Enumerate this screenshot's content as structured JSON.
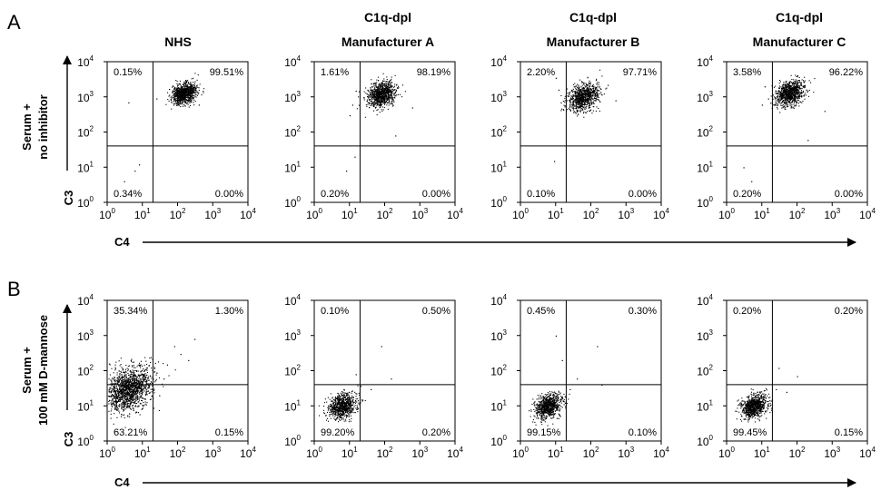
{
  "figure": {
    "panel_letters": [
      "A",
      "B"
    ],
    "column_headers": [
      {
        "line1": "",
        "line2": "NHS"
      },
      {
        "line1": "C1q-dpl",
        "line2": "Manufacturer A"
      },
      {
        "line1": "C1q-dpl",
        "line2": "Manufacturer B"
      },
      {
        "line1": "C1q-dpl",
        "line2": "Manufacturer C"
      }
    ],
    "row_labels": [
      {
        "line1": "Serum +",
        "line2": "no inhibitor"
      },
      {
        "line1": "Serum +",
        "line2": "100 mM D-mannose"
      }
    ],
    "x_axis_name": "C4",
    "y_axis_name": "C3",
    "tick_base": "10",
    "tick_exponents": [
      "0",
      "1",
      "2",
      "3",
      "4"
    ],
    "colors": {
      "ink": "#000000",
      "background": "#ffffff"
    }
  },
  "chart_data": [
    {
      "type": "scatter",
      "row": "A",
      "column": "NHS",
      "x_scale": "log",
      "y_scale": "log",
      "xlim": [
        1,
        10000
      ],
      "ylim": [
        1,
        10000
      ],
      "gate": {
        "x": 20,
        "y": 40
      },
      "quadrants": {
        "upper_left": "0.15%",
        "upper_right": "99.51%",
        "lower_left": "0.34%",
        "lower_right": "0.00%"
      },
      "populations": [
        {
          "x_center": 150,
          "y_center": 1300,
          "spread": 0.17,
          "count": 900
        }
      ],
      "outliers": [
        [
          4,
          700
        ],
        [
          6,
          8
        ],
        [
          3,
          4
        ],
        [
          8,
          12
        ],
        [
          25,
          900
        ],
        [
          400,
          600
        ]
      ]
    },
    {
      "type": "scatter",
      "row": "A",
      "column": "Manufacturer A",
      "x_scale": "log",
      "y_scale": "log",
      "xlim": [
        1,
        10000
      ],
      "ylim": [
        1,
        10000
      ],
      "gate": {
        "x": 20,
        "y": 40
      },
      "quadrants": {
        "upper_left": "1.61%",
        "upper_right": "98.19%",
        "lower_left": "0.20%",
        "lower_right": "0.00%"
      },
      "populations": [
        {
          "x_center": 80,
          "y_center": 1200,
          "spread": 0.2,
          "count": 900
        }
      ],
      "outliers": [
        [
          12,
          600
        ],
        [
          15,
          1500
        ],
        [
          10,
          300
        ],
        [
          8,
          8
        ],
        [
          14,
          20
        ],
        [
          200,
          80
        ],
        [
          600,
          500
        ]
      ]
    },
    {
      "type": "scatter",
      "row": "A",
      "column": "Manufacturer B",
      "x_scale": "log",
      "y_scale": "log",
      "xlim": [
        1,
        10000
      ],
      "ylim": [
        1,
        10000
      ],
      "gate": {
        "x": 20,
        "y": 40
      },
      "quadrants": {
        "upper_left": "2.20%",
        "upper_right": "97.71%",
        "lower_left": "0.10%",
        "lower_right": "0.00%"
      },
      "populations": [
        {
          "x_center": 60,
          "y_center": 1000,
          "spread": 0.22,
          "count": 900
        }
      ],
      "outliers": [
        [
          12,
          1600
        ],
        [
          14,
          700
        ],
        [
          10,
          3500
        ],
        [
          9,
          15
        ],
        [
          300,
          2200
        ],
        [
          500,
          800
        ]
      ]
    },
    {
      "type": "scatter",
      "row": "A",
      "column": "Manufacturer C",
      "x_scale": "log",
      "y_scale": "log",
      "xlim": [
        1,
        10000
      ],
      "ylim": [
        1,
        10000
      ],
      "gate": {
        "x": 20,
        "y": 40
      },
      "quadrants": {
        "upper_left": "3.58%",
        "upper_right": "96.22%",
        "lower_left": "0.20%",
        "lower_right": "0.00%"
      },
      "populations": [
        {
          "x_center": 60,
          "y_center": 1300,
          "spread": 0.2,
          "count": 900
        }
      ],
      "outliers": [
        [
          12,
          2000
        ],
        [
          15,
          900
        ],
        [
          10,
          600
        ],
        [
          3,
          10
        ],
        [
          5,
          4
        ],
        [
          600,
          400
        ],
        [
          200,
          60
        ]
      ]
    },
    {
      "type": "scatter",
      "row": "B",
      "column": "NHS",
      "x_scale": "log",
      "y_scale": "log",
      "xlim": [
        1,
        10000
      ],
      "ylim": [
        1,
        10000
      ],
      "gate": {
        "x": 20,
        "y": 40
      },
      "quadrants": {
        "upper_left": "35.34%",
        "upper_right": "1.30%",
        "lower_left": "63.21%",
        "lower_right": "0.15%"
      },
      "populations": [
        {
          "x_center": 4,
          "y_center": 30,
          "spread": 0.34,
          "count": 1500
        }
      ],
      "outliers": [
        [
          50,
          150
        ],
        [
          120,
          300
        ],
        [
          300,
          800
        ],
        [
          80,
          500
        ],
        [
          40,
          60
        ],
        [
          30,
          20
        ],
        [
          200,
          200
        ]
      ]
    },
    {
      "type": "scatter",
      "row": "B",
      "column": "Manufacturer A",
      "x_scale": "log",
      "y_scale": "log",
      "xlim": [
        1,
        10000
      ],
      "ylim": [
        1,
        10000
      ],
      "gate": {
        "x": 20,
        "y": 40
      },
      "quadrants": {
        "upper_left": "0.10%",
        "upper_right": "0.50%",
        "lower_left": "99.20%",
        "lower_right": "0.20%"
      },
      "populations": [
        {
          "x_center": 6,
          "y_center": 10,
          "spread": 0.2,
          "count": 800
        }
      ],
      "outliers": [
        [
          80,
          500
        ],
        [
          150,
          60
        ],
        [
          40,
          30
        ],
        [
          15,
          80
        ]
      ]
    },
    {
      "type": "scatter",
      "row": "B",
      "column": "Manufacturer B",
      "x_scale": "log",
      "y_scale": "log",
      "xlim": [
        1,
        10000
      ],
      "ylim": [
        1,
        10000
      ],
      "gate": {
        "x": 20,
        "y": 40
      },
      "quadrants": {
        "upper_left": "0.45%",
        "upper_right": "0.30%",
        "lower_left": "99.15%",
        "lower_right": "0.10%"
      },
      "populations": [
        {
          "x_center": 6,
          "y_center": 10,
          "spread": 0.19,
          "count": 800
        }
      ],
      "outliers": [
        [
          10,
          1000
        ],
        [
          15,
          200
        ],
        [
          150,
          500
        ],
        [
          40,
          60
        ],
        [
          25,
          30
        ],
        [
          200,
          40
        ]
      ]
    },
    {
      "type": "scatter",
      "row": "B",
      "column": "Manufacturer C",
      "x_scale": "log",
      "y_scale": "log",
      "xlim": [
        1,
        10000
      ],
      "ylim": [
        1,
        10000
      ],
      "gate": {
        "x": 20,
        "y": 40
      },
      "quadrants": {
        "upper_left": "0.20%",
        "upper_right": "0.20%",
        "lower_left": "99.45%",
        "lower_right": "0.15%"
      },
      "populations": [
        {
          "x_center": 6,
          "y_center": 10,
          "spread": 0.19,
          "count": 800
        }
      ],
      "outliers": [
        [
          100,
          70
        ],
        [
          30,
          120
        ],
        [
          25,
          30
        ],
        [
          50,
          25
        ]
      ]
    }
  ]
}
